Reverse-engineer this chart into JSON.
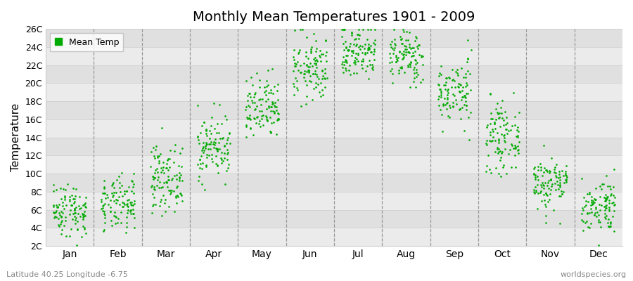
{
  "title": "Monthly Mean Temperatures 1901 - 2009",
  "ylabel": "Temperature",
  "subtitle_left": "Latitude 40.25 Longitude -6.75",
  "subtitle_right": "worldspecies.org",
  "yticks": [
    2,
    4,
    6,
    8,
    10,
    12,
    14,
    16,
    18,
    20,
    22,
    24,
    26
  ],
  "ylim": [
    2,
    26
  ],
  "months": [
    "Jan",
    "Feb",
    "Mar",
    "Apr",
    "May",
    "Jun",
    "Jul",
    "Aug",
    "Sep",
    "Oct",
    "Nov",
    "Dec"
  ],
  "dot_color": "#00aa00",
  "bg_color_light": "#ebebeb",
  "bg_color_dark": "#e0e0e0",
  "legend_label": "Mean Temp",
  "dot_size": 3,
  "num_years": 109,
  "seed": 42,
  "monthly_means": [
    6.0,
    6.5,
    9.5,
    13.0,
    17.0,
    21.5,
    23.5,
    23.0,
    19.0,
    14.0,
    9.0,
    6.5
  ],
  "monthly_stds": [
    1.5,
    1.5,
    1.8,
    1.8,
    1.8,
    1.8,
    1.5,
    1.5,
    1.8,
    1.8,
    1.5,
    1.5
  ]
}
